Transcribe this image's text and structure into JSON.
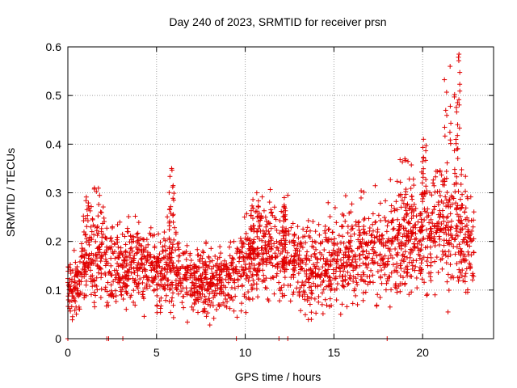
{
  "chart_data": {
    "type": "scatter",
    "title": "Day 240 of 2023, SRMTID for receiver prsn",
    "xlabel": "GPS time / hours",
    "ylabel": "SRMTID / TECUs",
    "xlim": [
      0,
      24
    ],
    "ylim": [
      0,
      0.6
    ],
    "xticks": [
      0,
      5,
      10,
      15,
      20
    ],
    "yticks": [
      0,
      0.1,
      0.2,
      0.3,
      0.4,
      0.5,
      0.6
    ],
    "grid": true,
    "marker": "+",
    "color": "#e00000",
    "series": [
      {
        "name": "SRMTID",
        "approx_count": 2400,
        "note": "individual points are estimated; envelope describes the visible scatter",
        "envelope": [
          {
            "x": 0.0,
            "mean": 0.12,
            "spread": 0.03
          },
          {
            "x": 0.5,
            "mean": 0.1,
            "spread": 0.03
          },
          {
            "x": 1.0,
            "mean": 0.17,
            "spread": 0.05
          },
          {
            "x": 2.0,
            "mean": 0.16,
            "spread": 0.05
          },
          {
            "x": 3.0,
            "mean": 0.15,
            "spread": 0.04
          },
          {
            "x": 4.0,
            "mean": 0.15,
            "spread": 0.04
          },
          {
            "x": 5.0,
            "mean": 0.15,
            "spread": 0.04
          },
          {
            "x": 6.0,
            "mean": 0.14,
            "spread": 0.04
          },
          {
            "x": 7.0,
            "mean": 0.12,
            "spread": 0.035
          },
          {
            "x": 8.0,
            "mean": 0.12,
            "spread": 0.035
          },
          {
            "x": 9.0,
            "mean": 0.12,
            "spread": 0.035
          },
          {
            "x": 10.0,
            "mean": 0.16,
            "spread": 0.045
          },
          {
            "x": 11.0,
            "mean": 0.18,
            "spread": 0.045
          },
          {
            "x": 12.0,
            "mean": 0.18,
            "spread": 0.045
          },
          {
            "x": 13.0,
            "mean": 0.16,
            "spread": 0.045
          },
          {
            "x": 14.0,
            "mean": 0.15,
            "spread": 0.045
          },
          {
            "x": 15.0,
            "mean": 0.16,
            "spread": 0.045
          },
          {
            "x": 16.0,
            "mean": 0.17,
            "spread": 0.045
          },
          {
            "x": 17.0,
            "mean": 0.18,
            "spread": 0.045
          },
          {
            "x": 18.0,
            "mean": 0.18,
            "spread": 0.05
          },
          {
            "x": 19.0,
            "mean": 0.2,
            "spread": 0.05
          },
          {
            "x": 20.0,
            "mean": 0.21,
            "spread": 0.05
          },
          {
            "x": 21.0,
            "mean": 0.24,
            "spread": 0.06
          },
          {
            "x": 22.0,
            "mean": 0.23,
            "spread": 0.06
          },
          {
            "x": 22.9,
            "mean": 0.18,
            "spread": 0.05
          }
        ],
        "bursts": [
          {
            "x0": 1.0,
            "x1": 2.0,
            "peak": 0.31
          },
          {
            "x0": 5.7,
            "x1": 6.0,
            "peak": 0.35
          },
          {
            "x0": 10.3,
            "x1": 11.0,
            "peak": 0.3
          },
          {
            "x0": 12.1,
            "x1": 12.3,
            "peak": 0.29
          },
          {
            "x0": 18.6,
            "x1": 19.4,
            "peak": 0.37
          },
          {
            "x0": 19.9,
            "x1": 20.2,
            "peak": 0.41
          },
          {
            "x0": 21.2,
            "x1": 21.9,
            "peak": 0.56
          },
          {
            "x0": 21.9,
            "x1": 22.2,
            "peak": 0.585
          }
        ],
        "zero_points_x": [
          0.0,
          2.2,
          2.3,
          3.1,
          9.5,
          11.9,
          12.4,
          18.0
        ]
      }
    ]
  }
}
